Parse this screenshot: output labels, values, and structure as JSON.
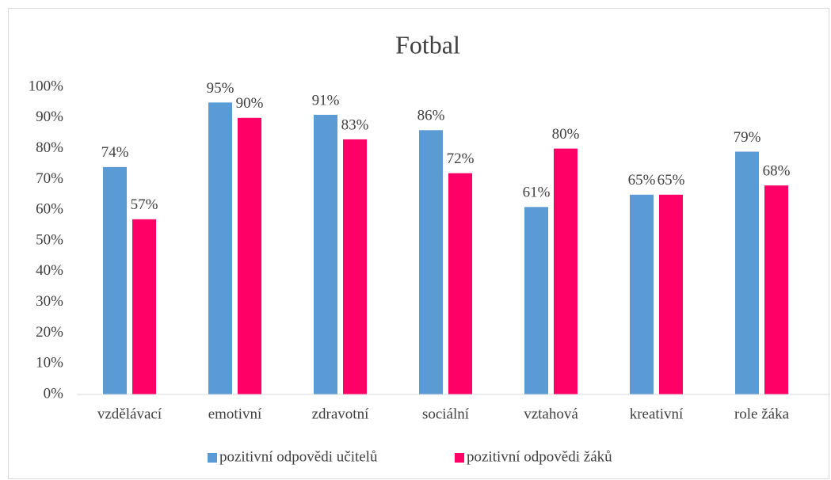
{
  "chart_data": {
    "type": "bar",
    "title": "Fotbal",
    "categories": [
      "vzdělávací",
      "emotivní",
      "zdravotní",
      "sociální",
      "vztahová",
      "kreativní",
      "role žáka"
    ],
    "series": [
      {
        "name": "pozitivní odpovědi učitelů",
        "color": "#5b9bd5",
        "values": [
          74,
          95,
          91,
          86,
          61,
          65,
          79
        ],
        "value_labels": [
          "74%",
          "95%",
          "91%",
          "86%",
          "61%",
          "65%",
          "79%"
        ]
      },
      {
        "name": "pozitivní odpovědi žáků",
        "color": "#ff0066",
        "values": [
          57,
          90,
          83,
          72,
          80,
          65,
          68
        ],
        "value_labels": [
          "57%",
          "90%",
          "83%",
          "72%",
          "80%",
          "65%",
          "68%"
        ]
      }
    ],
    "ylim": [
      0,
      100
    ],
    "yticks": [
      {
        "value": 0,
        "label": "0%"
      },
      {
        "value": 10,
        "label": "10%"
      },
      {
        "value": 20,
        "label": "20%"
      },
      {
        "value": 30,
        "label": "30%"
      },
      {
        "value": 40,
        "label": "40%"
      },
      {
        "value": 50,
        "label": "50%"
      },
      {
        "value": 60,
        "label": "60%"
      },
      {
        "value": 70,
        "label": "70%"
      },
      {
        "value": 80,
        "label": "80%"
      },
      {
        "value": 90,
        "label": "90%"
      },
      {
        "value": 100,
        "label": "100%"
      }
    ],
    "grid": false,
    "legend": "bottom"
  }
}
